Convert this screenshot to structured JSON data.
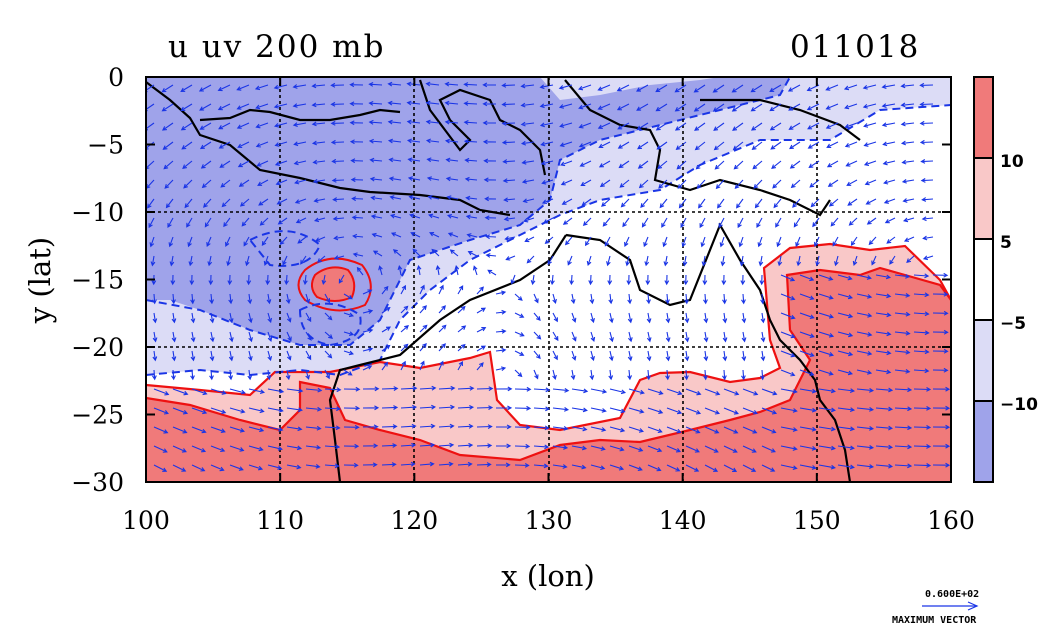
{
  "chart_data": {
    "type": "heatmap",
    "title_left": "u uv 200 mb",
    "title_right": "011018",
    "xlabel": "x (lon)",
    "ylabel": "y (lat)",
    "xlim": [
      100,
      160
    ],
    "ylim": [
      -30,
      0
    ],
    "x_ticks": [
      100,
      110,
      120,
      130,
      140,
      150,
      160
    ],
    "y_ticks": [
      0,
      -5,
      -10,
      -15,
      -20,
      -25,
      -30
    ],
    "x_tick_labels": [
      "100",
      "110",
      "120",
      "130",
      "140",
      "150",
      "160"
    ],
    "y_tick_labels": [
      "0",
      "−5",
      "−10",
      "−15",
      "−20",
      "−25",
      "−30"
    ],
    "gridlines": true,
    "colorbar": {
      "tick_labels": [
        "10",
        "5",
        "−5",
        "−10"
      ],
      "levels": [
        10,
        5,
        -5,
        -10
      ],
      "bands": [
        {
          "range": "> 10",
          "color": "#f07a7a"
        },
        {
          "range": "5 to 10",
          "color": "#f9c8c8"
        },
        {
          "range": "-5 to 5",
          "color": "#ffffff"
        },
        {
          "range": "-10 to -5",
          "color": "#dcdcf6"
        },
        {
          "range": "< -10",
          "color": "#9fa3ea"
        }
      ]
    },
    "regions": [
      {
        "name": "strong easterly band north",
        "value_class": "< -10",
        "lon": [
          100,
          130
        ],
        "lat": [
          -10,
          0
        ]
      },
      {
        "name": "easterly west",
        "value_class": "-10 to -5",
        "lon": [
          100,
          125
        ],
        "lat": [
          -20,
          -10
        ]
      },
      {
        "name": "westerly jet south",
        "value_class": "> 10",
        "lon": [
          100,
          160
        ],
        "lat": [
          -30,
          -24
        ]
      },
      {
        "name": "westerly jet east",
        "value_class": "> 10",
        "lon": [
          147,
          160
        ],
        "lat": [
          -30,
          -14
        ]
      },
      {
        "name": "westerly pocket",
        "value_class": "> 10",
        "lon": [
          112,
          116
        ],
        "lat": [
          -17,
          -14
        ]
      }
    ],
    "vector_key": {
      "value_label": "0.600E+02",
      "caption": "MAXIMUM VECTOR"
    },
    "colors": {
      "contour": "#ee1111",
      "vector": "#1a35e6",
      "coast": "#000000"
    }
  }
}
